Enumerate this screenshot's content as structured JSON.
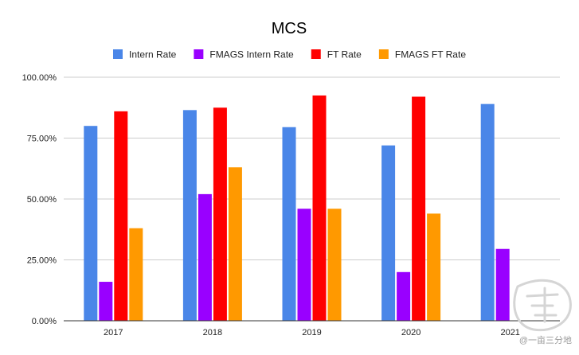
{
  "chart_data": {
    "type": "bar",
    "title": "MCS",
    "xlabel": "",
    "ylabel": "",
    "categories": [
      "2017",
      "2018",
      "2019",
      "2020",
      "2021"
    ],
    "ylim": [
      0,
      100
    ],
    "yticks": [
      "0.00%",
      "25.00%",
      "50.00%",
      "75.00%",
      "100.00%"
    ],
    "grid": true,
    "legend_position": "top",
    "series": [
      {
        "name": "Intern Rate",
        "color": "#4a86e8",
        "values": [
          80.0,
          86.5,
          79.5,
          72.0,
          89.0
        ]
      },
      {
        "name": "FMAGS Intern Rate",
        "color": "#9900ff",
        "values": [
          16.0,
          52.0,
          46.0,
          20.0,
          29.5
        ]
      },
      {
        "name": "FT Rate",
        "color": "#ff0000",
        "values": [
          86.0,
          87.5,
          92.5,
          92.0,
          null
        ]
      },
      {
        "name": "FMAGS FT Rate",
        "color": "#ff9900",
        "values": [
          38.0,
          63.0,
          46.0,
          44.0,
          null
        ]
      }
    ]
  },
  "watermark": "@一亩三分地"
}
